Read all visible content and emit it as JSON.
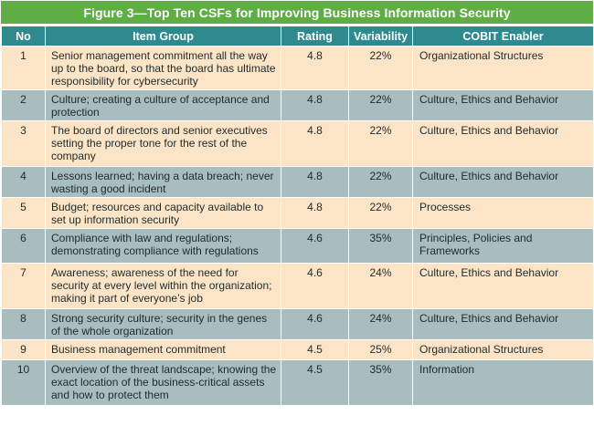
{
  "title": "Figure 3—Top Ten CSFs for Improving Business Information Security",
  "columns": {
    "no": "No",
    "item_group": "Item Group",
    "rating": "Rating",
    "variability": "Variability",
    "enabler": "COBIT Enabler"
  },
  "rows": [
    {
      "no": "1",
      "item_group": "Senior management commitment all the way up to the board, so that the board has ultimate responsibility for cybersecurity",
      "rating": "4.8",
      "variability": "22%",
      "enabler": "Organizational Structures"
    },
    {
      "no": "2",
      "item_group": "Culture; creating a culture  of acceptance and protection",
      "rating": "4.8",
      "variability": "22%",
      "enabler": "Culture, Ethics and Behavior"
    },
    {
      "no": "3",
      "item_group": "The board of directors and senior executives setting the proper tone for the rest of the company",
      "rating": "4.8",
      "variability": "22%",
      "enabler": "Culture, Ethics and Behavior"
    },
    {
      "no": "4",
      "item_group": "Lessons learned; having a data breach; never wasting a good incident",
      "rating": "4.8",
      "variability": "22%",
      "enabler": "Culture, Ethics and Behavior"
    },
    {
      "no": "5",
      "item_group": "Budget; resources and capacity available to set up information security",
      "rating": "4.8",
      "variability": "22%",
      "enabler": "Processes"
    },
    {
      "no": "6",
      "item_group": "Compliance with law and regulations; demonstrating compliance with regulations",
      "rating": "4.6",
      "variability": "35%",
      "enabler": "Principles, Policies and Frameworks"
    },
    {
      "no": "7",
      "item_group": "Awareness; awareness of the need for security at every level within the organization; making it part of everyone’s job",
      "rating": "4.6",
      "variability": "24%",
      "enabler": "Culture, Ethics and Behavior"
    },
    {
      "no": "8",
      "item_group": "Strong security culture; security in the genes of the whole organization",
      "rating": "4.6",
      "variability": "24%",
      "enabler": "Culture, Ethics and Behavior"
    },
    {
      "no": "9",
      "item_group": "Business management commitment",
      "rating": "4.5",
      "variability": "25%",
      "enabler": "Organizational Structures"
    },
    {
      "no": "10",
      "item_group": "Overview of the threat landscape; knowing the exact location of the business-critical assets and how to protect them",
      "rating": "4.5",
      "variability": "35%",
      "enabler": "Information"
    }
  ],
  "colors": {
    "title_bg": "#5fae45",
    "header_bg": "#2f8a8f",
    "row_odd_bg": "#fbe5c6",
    "row_even_bg": "#a7bdbe"
  }
}
